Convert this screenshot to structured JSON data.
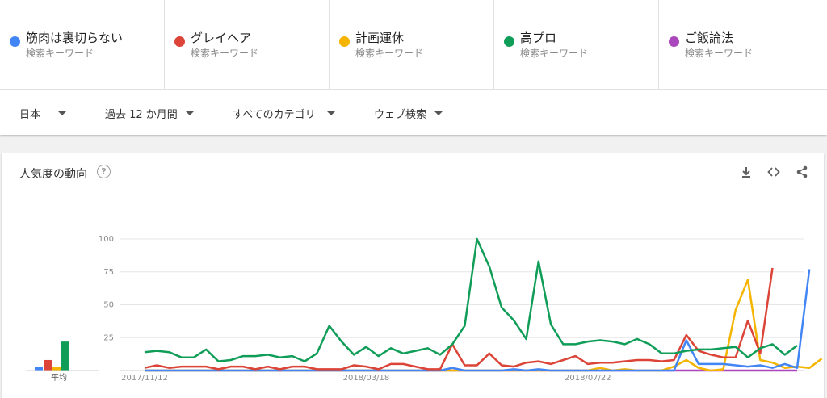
{
  "terms": [
    {
      "name": "筋肉は裏切らない",
      "type": "検索キーワード",
      "color": "#4285f4"
    },
    {
      "name": "グレイヘア",
      "type": "検索キーワード",
      "color": "#db4437"
    },
    {
      "name": "計画運休",
      "type": "検索キーワード",
      "color": "#f4b400"
    },
    {
      "name": "高プロ",
      "type": "検索キーワード",
      "color": "#0f9d58"
    },
    {
      "name": "ご飯論法",
      "type": "検索キーワード",
      "color": "#ab47bc"
    }
  ],
  "filters": {
    "region": "日本",
    "period": "過去 12 か月間",
    "category": "すべてのカテゴリ",
    "search_type": "ウェブ検索"
  },
  "card": {
    "title": "人気度の動向",
    "help_glyph": "?",
    "avg_label": "平均"
  },
  "icons": {
    "help": "help-circle-icon",
    "download": "download-icon",
    "embed": "embed-code-icon",
    "share": "share-icon"
  },
  "chart_data": {
    "type": "line",
    "ylim": [
      0,
      100
    ],
    "yticks": [
      25,
      50,
      75,
      100
    ],
    "xtick_labels": [
      "2017/11/12",
      "2018/03/18",
      "2018/07/22"
    ],
    "xtick_index": [
      0,
      18,
      36
    ],
    "grid": true,
    "series": [
      {
        "name": "筋肉は裏切らない",
        "color": "#4285f4",
        "values": [
          0,
          0,
          0,
          0,
          0,
          0,
          0,
          0,
          0,
          0,
          0,
          0,
          0,
          0,
          0,
          0,
          0,
          0,
          0,
          0,
          0,
          0,
          0,
          0,
          0,
          2,
          0,
          0,
          0,
          0,
          1,
          0,
          1,
          0,
          0,
          0,
          0,
          0,
          0,
          0,
          0,
          0,
          0,
          0,
          23,
          5,
          5,
          5,
          4,
          3,
          4,
          2,
          5,
          2,
          77
        ]
      },
      {
        "name": "グレイヘア",
        "color": "#db4437",
        "values": [
          2,
          4,
          2,
          3,
          3,
          3,
          1,
          3,
          3,
          1,
          3,
          1,
          3,
          3,
          1,
          1,
          1,
          4,
          3,
          1,
          5,
          5,
          3,
          1,
          1,
          20,
          4,
          4,
          13,
          4,
          3,
          6,
          7,
          5,
          8,
          11,
          5,
          6,
          6,
          7,
          8,
          8,
          7,
          8,
          27,
          15,
          12,
          10,
          10,
          38,
          13,
          78
        ]
      },
      {
        "name": "計画運休",
        "color": "#f4b400",
        "values": [
          0,
          0,
          0,
          0,
          0,
          0,
          0,
          0,
          0,
          0,
          0,
          0,
          0,
          0,
          0,
          0,
          0,
          0,
          0,
          0,
          0,
          0,
          0,
          0,
          0,
          0,
          0,
          0,
          0,
          0,
          0,
          0,
          0,
          0,
          0,
          0,
          0,
          2,
          0,
          1,
          0,
          0,
          0,
          3,
          8,
          2,
          0,
          1,
          46,
          69,
          8,
          6,
          2,
          3,
          2,
          9
        ]
      },
      {
        "name": "高プロ",
        "color": "#0f9d58",
        "values": [
          14,
          15,
          14,
          10,
          10,
          16,
          7,
          8,
          11,
          11,
          12,
          10,
          11,
          7,
          13,
          34,
          22,
          12,
          18,
          11,
          17,
          13,
          15,
          17,
          12,
          20,
          34,
          100,
          79,
          48,
          38,
          24,
          83,
          35,
          20,
          20,
          22,
          23,
          22,
          20,
          24,
          20,
          13,
          13,
          15,
          16,
          16,
          17,
          18,
          10,
          17,
          20,
          12,
          19
        ]
      },
      {
        "name": "ご飯論法",
        "color": "#ab47bc",
        "values": [
          0,
          0,
          0,
          0,
          0,
          0,
          0,
          0,
          0,
          0,
          0,
          0,
          0,
          0,
          0,
          0,
          0,
          0,
          0,
          0,
          0,
          0,
          0,
          0,
          0,
          0,
          0,
          0,
          0,
          0,
          0,
          0,
          0,
          0,
          0,
          0,
          0,
          0,
          0,
          0,
          0,
          0,
          0,
          0,
          0,
          0,
          0,
          0,
          0,
          0,
          0,
          0,
          0,
          0
        ]
      }
    ],
    "averages": [
      {
        "name": "筋肉は裏切らない",
        "color": "#4285f4",
        "value": 3
      },
      {
        "name": "グレイヘア",
        "color": "#db4437",
        "value": 8
      },
      {
        "name": "計画運休",
        "color": "#f4b400",
        "value": 3
      },
      {
        "name": "高プロ",
        "color": "#0f9d58",
        "value": 22
      },
      {
        "name": "ご飯論法",
        "color": "#ab47bc",
        "value": 0
      }
    ]
  }
}
